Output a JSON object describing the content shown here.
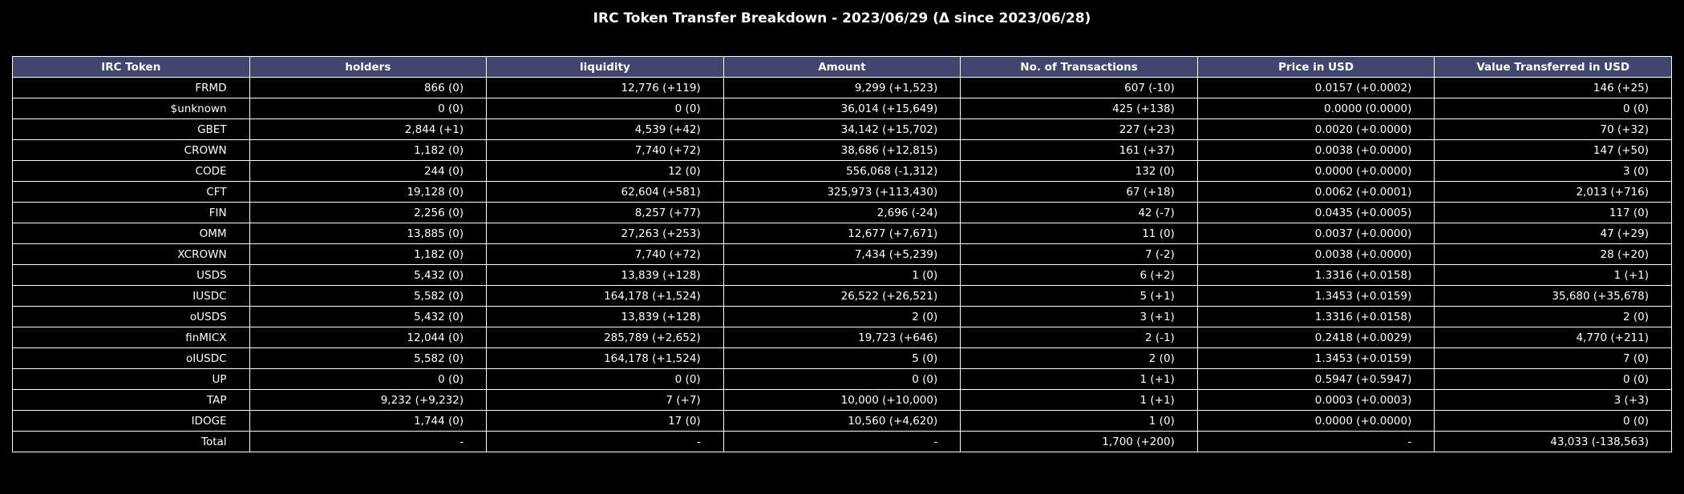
{
  "title": "IRC Token Transfer Breakdown - 2023/06/29 (Δ since 2023/06/28)",
  "colors": {
    "background": "#000000",
    "header_fill": "#40466e",
    "text": "#ffffff",
    "grid": "#ffffff"
  },
  "chart_data": {
    "type": "table",
    "title": "IRC Token Transfer Breakdown - 2023/06/29 (Δ since 2023/06/28)",
    "columns": [
      "IRC Token",
      "holders",
      "liquidity",
      "Amount",
      "No. of Transactions",
      "Price in USD",
      "Value Transferred in USD"
    ],
    "rows": [
      [
        "FRMD",
        "866 (0)",
        "12,776 (+119)",
        "9,299 (+1,523)",
        "607 (-10)",
        "0.0157 (+0.0002)",
        "146 (+25)"
      ],
      [
        "$unknown",
        "0 (0)",
        "0 (0)",
        "36,014 (+15,649)",
        "425 (+138)",
        "0.0000 (0.0000)",
        "0 (0)"
      ],
      [
        "GBET",
        "2,844 (+1)",
        "4,539 (+42)",
        "34,142 (+15,702)",
        "227 (+23)",
        "0.0020 (+0.0000)",
        "70 (+32)"
      ],
      [
        "CROWN",
        "1,182 (0)",
        "7,740 (+72)",
        "38,686 (+12,815)",
        "161 (+37)",
        "0.0038 (+0.0000)",
        "147 (+50)"
      ],
      [
        "CODE",
        "244 (0)",
        "12 (0)",
        "556,068 (-1,312)",
        "132 (0)",
        "0.0000 (+0.0000)",
        "3 (0)"
      ],
      [
        "CFT",
        "19,128 (0)",
        "62,604 (+581)",
        "325,973 (+113,430)",
        "67 (+18)",
        "0.0062 (+0.0001)",
        "2,013 (+716)"
      ],
      [
        "FIN",
        "2,256 (0)",
        "8,257 (+77)",
        "2,696 (-24)",
        "42 (-7)",
        "0.0435 (+0.0005)",
        "117 (0)"
      ],
      [
        "OMM",
        "13,885 (0)",
        "27,263 (+253)",
        "12,677 (+7,671)",
        "11 (0)",
        "0.0037 (+0.0000)",
        "47 (+29)"
      ],
      [
        "XCROWN",
        "1,182 (0)",
        "7,740 (+72)",
        "7,434 (+5,239)",
        "7 (-2)",
        "0.0038 (+0.0000)",
        "28 (+20)"
      ],
      [
        "USDS",
        "5,432 (0)",
        "13,839 (+128)",
        "1 (0)",
        "6 (+2)",
        "1.3316 (+0.0158)",
        "1 (+1)"
      ],
      [
        "IUSDC",
        "5,582 (0)",
        "164,178 (+1,524)",
        "26,522 (+26,521)",
        "5 (+1)",
        "1.3453 (+0.0159)",
        "35,680 (+35,678)"
      ],
      [
        "oUSDS",
        "5,432 (0)",
        "13,839 (+128)",
        "2 (0)",
        "3 (+1)",
        "1.3316 (+0.0158)",
        "2 (0)"
      ],
      [
        "finMICX",
        "12,044 (0)",
        "285,789 (+2,652)",
        "19,723 (+646)",
        "2 (-1)",
        "0.2418 (+0.0029)",
        "4,770 (+211)"
      ],
      [
        "oIUSDC",
        "5,582 (0)",
        "164,178 (+1,524)",
        "5 (0)",
        "2 (0)",
        "1.3453 (+0.0159)",
        "7 (0)"
      ],
      [
        "UP",
        "0 (0)",
        "0 (0)",
        "0 (0)",
        "1 (+1)",
        "0.5947 (+0.5947)",
        "0 (0)"
      ],
      [
        "TAP",
        "9,232 (+9,232)",
        "7 (+7)",
        "10,000 (+10,000)",
        "1 (+1)",
        "0.0003 (+0.0003)",
        "3 (+3)"
      ],
      [
        "IDOGE",
        "1,744 (0)",
        "17 (0)",
        "10,560 (+4,620)",
        "1 (0)",
        "0.0000 (+0.0000)",
        "0 (0)"
      ],
      [
        "Total",
        "-",
        "-",
        "-",
        "1,700 (+200)",
        "-",
        "43,033 (-138,563)"
      ]
    ]
  }
}
